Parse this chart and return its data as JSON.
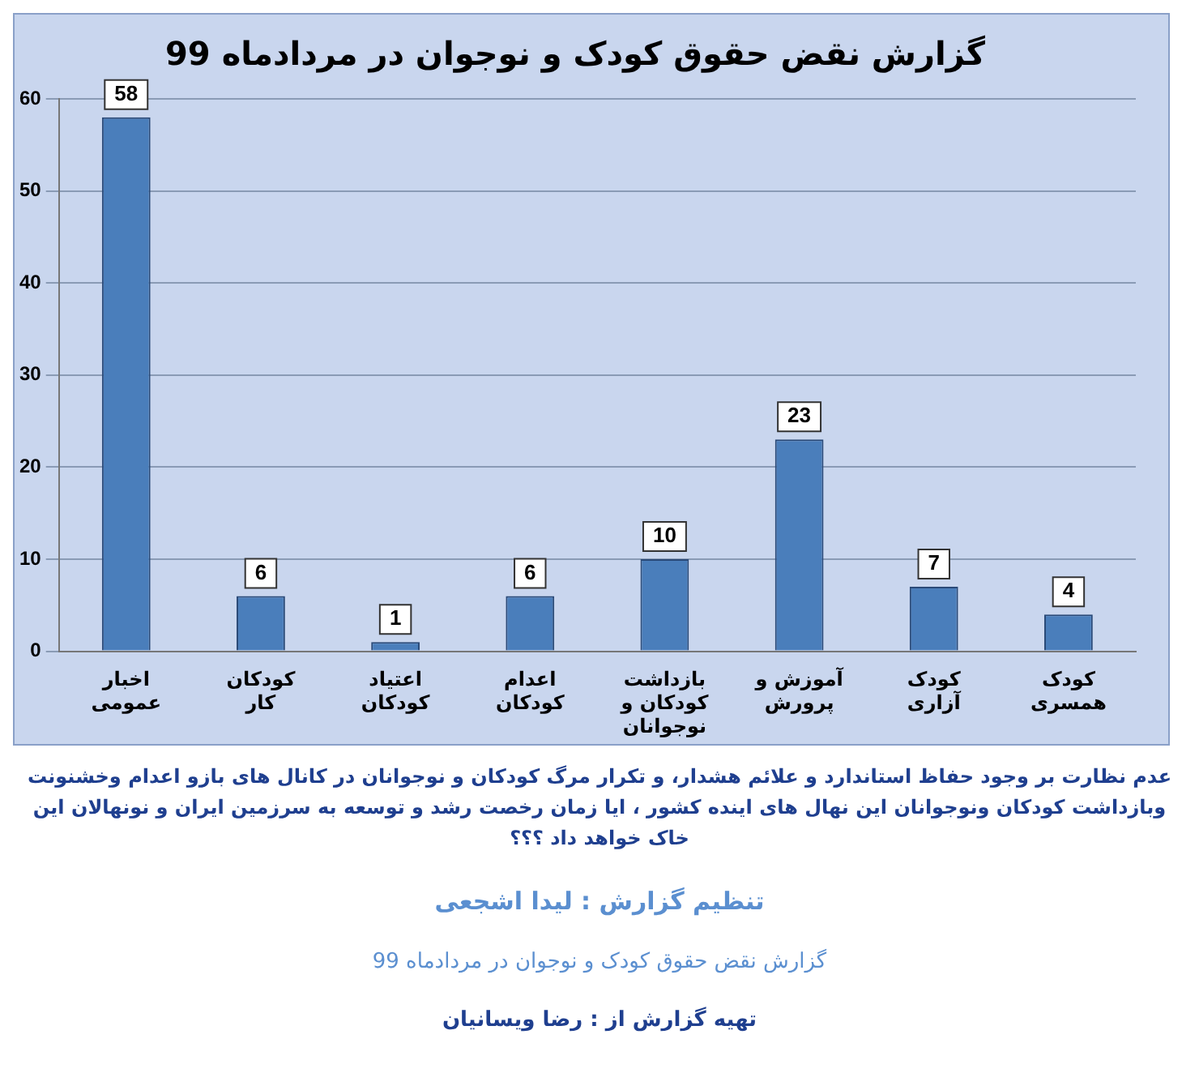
{
  "chart_data": {
    "type": "bar",
    "title": "گزارش نقض حقوق کودک و نوجوان در مردادماه 99",
    "categories": [
      "اخبار عمومی",
      "کودکان کار",
      "اعتیاد کودکان",
      "اعدام کودکان",
      "بازداشت کودکان و نوجوانان",
      "آموزش و پرورش",
      "کودک آزاری",
      "کودک همسری"
    ],
    "values": [
      58,
      6,
      1,
      6,
      10,
      23,
      7,
      4
    ],
    "color": "#4a7ebb",
    "ylim": [
      0,
      60
    ],
    "yticks": [
      0,
      10,
      20,
      30,
      40,
      50,
      60
    ],
    "grid": "y",
    "data_labels": true,
    "legend": false,
    "annotations": [
      "عدم نظارت بر وجود حفاظ استاندارد و علائم هشدار، و تکرار مرگ کودکان و نوجوانان در کانال های بازو اعدام وخشنونت وبازداشت کودکان ونوجوانان این نهال های اینده کشور ، ایا زمان رخصت رشد و توسعه به سرزمین ایران و نونهالان این خاک خواهد داد ؟؟؟",
      "تنظیم گزارش : لیدا اشجعی",
      "گزارش نقض حقوق کودک و نوجوان در مردادماه 99",
      "تهیه گزارش از : رضا ویسانیان"
    ]
  }
}
